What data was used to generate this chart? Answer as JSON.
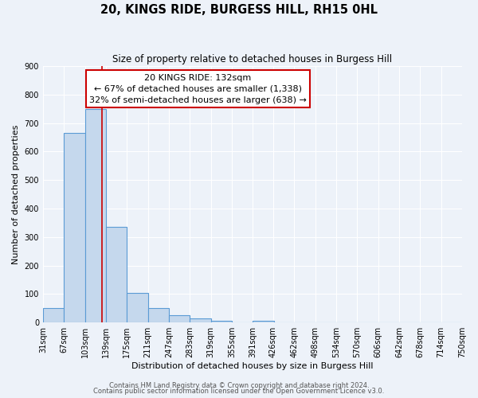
{
  "title": "20, KINGS RIDE, BURGESS HILL, RH15 0HL",
  "subtitle": "Size of property relative to detached houses in Burgess Hill",
  "xlabel": "Distribution of detached houses by size in Burgess Hill",
  "ylabel": "Number of detached properties",
  "bin_edges": [
    31,
    67,
    103,
    139,
    175,
    211,
    247,
    283,
    319,
    355,
    391,
    426,
    462,
    498,
    534,
    570,
    606,
    642,
    678,
    714,
    750
  ],
  "bar_heights": [
    50,
    665,
    750,
    335,
    105,
    50,
    25,
    15,
    5,
    0,
    5,
    0,
    0,
    0,
    0,
    0,
    0,
    0,
    0,
    0
  ],
  "bar_color": "#c5d8ed",
  "bar_edgecolor": "#5b9bd5",
  "bar_linewidth": 0.8,
  "vline_x": 132,
  "vline_color": "#cc0000",
  "annotation_title": "20 KINGS RIDE: 132sqm",
  "annotation_line1": "← 67% of detached houses are smaller (1,338)",
  "annotation_line2": "32% of semi-detached houses are larger (638) →",
  "annotation_box_color": "#ffffff",
  "annotation_box_edgecolor": "#cc0000",
  "ylim": [
    0,
    900
  ],
  "yticks": [
    0,
    100,
    200,
    300,
    400,
    500,
    600,
    700,
    800,
    900
  ],
  "background_color": "#edf2f9",
  "grid_color": "#ffffff",
  "footer_line1": "Contains HM Land Registry data © Crown copyright and database right 2024.",
  "footer_line2": "Contains public sector information licensed under the Open Government Licence v3.0.",
  "title_fontsize": 10.5,
  "subtitle_fontsize": 8.5,
  "axis_label_fontsize": 8.0,
  "tick_fontsize": 7.0,
  "annotation_title_fontsize": 8.5,
  "annotation_body_fontsize": 8.0,
  "footer_fontsize": 6.0
}
